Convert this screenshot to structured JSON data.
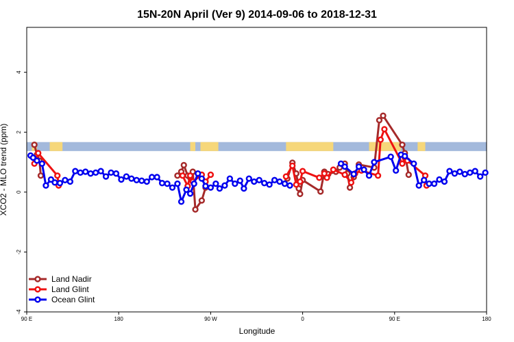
{
  "chart_data": {
    "type": "line",
    "title": "15N-20N April (Ver 9)   2014-09-06 to 2018-12-31",
    "xlabel": "Longitude",
    "ylabel": "XCO2 - MLO trend (ppm)",
    "xlim": [
      0,
      360
    ],
    "ylim": [
      -4.0,
      5.5
    ],
    "x_ticks": [
      {
        "value": 0,
        "label": "90 E"
      },
      {
        "value": 72,
        "label": "180"
      },
      {
        "value": 144,
        "label": "90 W"
      },
      {
        "value": 216,
        "label": "0"
      },
      {
        "value": 288,
        "label": "90 E"
      },
      {
        "value": 360,
        "label": "180"
      }
    ],
    "y_ticks": [
      -4,
      -2,
      0,
      2,
      4
    ],
    "grid": false,
    "legend_position": "bottom-left",
    "land_band": {
      "y_range": [
        1.37,
        1.67
      ],
      "ocean_color": "#a3b9dc",
      "land_color": "#f6d77a",
      "land_segments": [
        [
          4,
          8
        ],
        [
          18,
          28
        ],
        [
          128,
          132
        ],
        [
          136,
          150
        ],
        [
          203,
          240
        ],
        [
          268,
          293
        ],
        [
          306,
          312
        ]
      ]
    },
    "series": [
      {
        "name": "Land Nadir",
        "color": "#a52a2a",
        "points": [
          [
            6,
            1.58
          ],
          [
            8,
            1.25
          ],
          [
            10,
            1.05
          ],
          [
            11,
            0.55
          ],
          [
            118,
            0.55
          ],
          [
            121,
            0.68
          ],
          [
            123,
            0.9
          ],
          [
            126,
            0.55
          ],
          [
            128,
            0.48
          ],
          [
            130,
            0.68
          ],
          [
            132,
            -0.58
          ],
          [
            137,
            -0.28
          ],
          [
            140,
            0.15
          ],
          [
            204,
            0.45
          ],
          [
            208,
            0.98
          ],
          [
            211,
            0.62
          ],
          [
            213,
            0.12
          ],
          [
            214,
            -0.06
          ],
          [
            216,
            0.4
          ],
          [
            230,
            0.02
          ],
          [
            233,
            0.68
          ],
          [
            236,
            0.6
          ],
          [
            242,
            0.68
          ],
          [
            245,
            0.82
          ],
          [
            249,
            0.95
          ],
          [
            251,
            0.62
          ],
          [
            253,
            0.15
          ],
          [
            256,
            0.5
          ],
          [
            260,
            0.92
          ],
          [
            272,
            0.82
          ],
          [
            276,
            2.4
          ],
          [
            279,
            2.55
          ],
          [
            294,
            1.58
          ],
          [
            296,
            1.3
          ],
          [
            299,
            0.58
          ]
        ]
      },
      {
        "name": "Land Glint",
        "color": "#ee1111",
        "points": [
          [
            6,
            0.95
          ],
          [
            9,
            1.3
          ],
          [
            24,
            0.55
          ],
          [
            25,
            0.22
          ],
          [
            122,
            0.55
          ],
          [
            126,
            0.2
          ],
          [
            128,
            0.55
          ],
          [
            130,
            0.35
          ],
          [
            137,
            0.58
          ],
          [
            140,
            0.35
          ],
          [
            144,
            0.58
          ],
          [
            203,
            0.52
          ],
          [
            208,
            0.88
          ],
          [
            211,
            0.25
          ],
          [
            214,
            0.35
          ],
          [
            216,
            0.7
          ],
          [
            229,
            0.48
          ],
          [
            233,
            0.62
          ],
          [
            235,
            0.48
          ],
          [
            240,
            0.75
          ],
          [
            249,
            0.58
          ],
          [
            254,
            0.32
          ],
          [
            257,
            0.62
          ],
          [
            262,
            0.72
          ],
          [
            275,
            0.55
          ],
          [
            277,
            1.75
          ],
          [
            280,
            2.1
          ],
          [
            294,
            0.95
          ],
          [
            296,
            1.15
          ],
          [
            298,
            1.05
          ],
          [
            312,
            0.55
          ],
          [
            313,
            0.22
          ]
        ]
      },
      {
        "name": "Ocean Glint",
        "color": "#0000ee",
        "points": [
          [
            3,
            1.22
          ],
          [
            5,
            1.15
          ],
          [
            8,
            1.05
          ],
          [
            12,
            0.95
          ],
          [
            15,
            0.22
          ],
          [
            19,
            0.42
          ],
          [
            22,
            0.32
          ],
          [
            26,
            0.3
          ],
          [
            30,
            0.4
          ],
          [
            34,
            0.35
          ],
          [
            38,
            0.7
          ],
          [
            42,
            0.65
          ],
          [
            46,
            0.68
          ],
          [
            50,
            0.62
          ],
          [
            54,
            0.65
          ],
          [
            58,
            0.7
          ],
          [
            62,
            0.52
          ],
          [
            66,
            0.65
          ],
          [
            70,
            0.62
          ],
          [
            74,
            0.42
          ],
          [
            78,
            0.52
          ],
          [
            82,
            0.45
          ],
          [
            86,
            0.4
          ],
          [
            90,
            0.38
          ],
          [
            94,
            0.35
          ],
          [
            98,
            0.5
          ],
          [
            102,
            0.5
          ],
          [
            106,
            0.3
          ],
          [
            110,
            0.28
          ],
          [
            114,
            0.15
          ],
          [
            118,
            0.28
          ],
          [
            121,
            -0.32
          ],
          [
            125,
            0.08
          ],
          [
            128,
            -0.05
          ],
          [
            131,
            0.28
          ],
          [
            134,
            0.62
          ],
          [
            137,
            0.45
          ],
          [
            140,
            0.2
          ],
          [
            144,
            0.15
          ],
          [
            148,
            0.28
          ],
          [
            151,
            0.12
          ],
          [
            155,
            0.22
          ],
          [
            159,
            0.45
          ],
          [
            163,
            0.28
          ],
          [
            167,
            0.38
          ],
          [
            170,
            0.12
          ],
          [
            174,
            0.45
          ],
          [
            178,
            0.35
          ],
          [
            182,
            0.4
          ],
          [
            186,
            0.3
          ],
          [
            190,
            0.25
          ],
          [
            194,
            0.4
          ],
          [
            198,
            0.35
          ],
          [
            202,
            0.28
          ],
          [
            206,
            0.22
          ],
          [
            246,
            0.95
          ],
          [
            249,
            0.85
          ],
          [
            256,
            0.6
          ],
          [
            260,
            0.85
          ],
          [
            264,
            0.75
          ],
          [
            268,
            0.55
          ],
          [
            272,
            1.0
          ],
          [
            285,
            1.18
          ],
          [
            289,
            0.72
          ],
          [
            293,
            1.25
          ],
          [
            296,
            1.2
          ],
          [
            303,
            0.95
          ],
          [
            307,
            0.22
          ],
          [
            311,
            0.4
          ],
          [
            315,
            0.28
          ],
          [
            319,
            0.28
          ],
          [
            323,
            0.42
          ],
          [
            327,
            0.35
          ],
          [
            331,
            0.7
          ],
          [
            335,
            0.62
          ],
          [
            339,
            0.68
          ],
          [
            343,
            0.6
          ],
          [
            347,
            0.65
          ],
          [
            351,
            0.7
          ],
          [
            355,
            0.52
          ],
          [
            359,
            0.65
          ]
        ]
      }
    ]
  }
}
